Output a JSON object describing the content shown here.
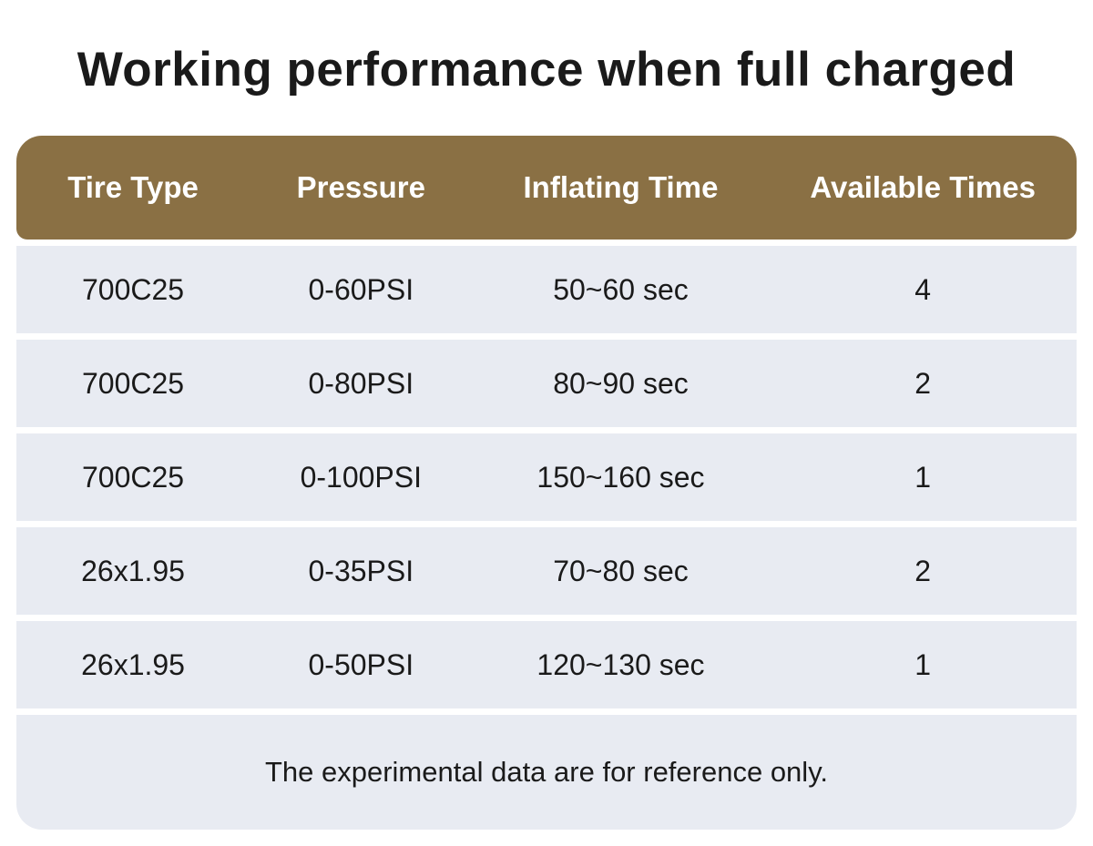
{
  "title": "Working performance when full charged",
  "table": {
    "headers": [
      "Tire Type",
      "Pressure",
      "Inflating Time",
      "Available Times"
    ],
    "rows": [
      [
        "700C25",
        "0-60PSI",
        "50~60 sec",
        "4"
      ],
      [
        "700C25",
        "0-80PSI",
        "80~90 sec",
        "2"
      ],
      [
        "700C25",
        "0-100PSI",
        "150~160 sec",
        "1"
      ],
      [
        "26x1.95",
        "0-35PSI",
        "70~80 sec",
        "2"
      ],
      [
        "26x1.95",
        "0-50PSI",
        "120~130 sec",
        "1"
      ]
    ],
    "footnote": "The experimental data are for reference only."
  },
  "colors": {
    "header_bg": "#8A7044",
    "row_bg": "#E8EBF2",
    "header_text": "#FFFFFF",
    "body_text": "#1A1A1A"
  },
  "chart_data": {
    "type": "table",
    "title": "Working performance when full charged",
    "columns": [
      "Tire Type",
      "Pressure",
      "Inflating Time",
      "Available Times"
    ],
    "rows": [
      [
        "700C25",
        "0-60PSI",
        "50~60 sec",
        "4"
      ],
      [
        "700C25",
        "0-80PSI",
        "80~90 sec",
        "2"
      ],
      [
        "700C25",
        "0-100PSI",
        "150~160 sec",
        "1"
      ],
      [
        "26x1.95",
        "0-35PSI",
        "70~80 sec",
        "2"
      ],
      [
        "26x1.95",
        "0-50PSI",
        "120~130 sec",
        "1"
      ]
    ],
    "footnote": "The experimental data are for reference only.",
    "layout": "header row brown, alternating none, all data rows same light gray, footnote row at bottom"
  }
}
